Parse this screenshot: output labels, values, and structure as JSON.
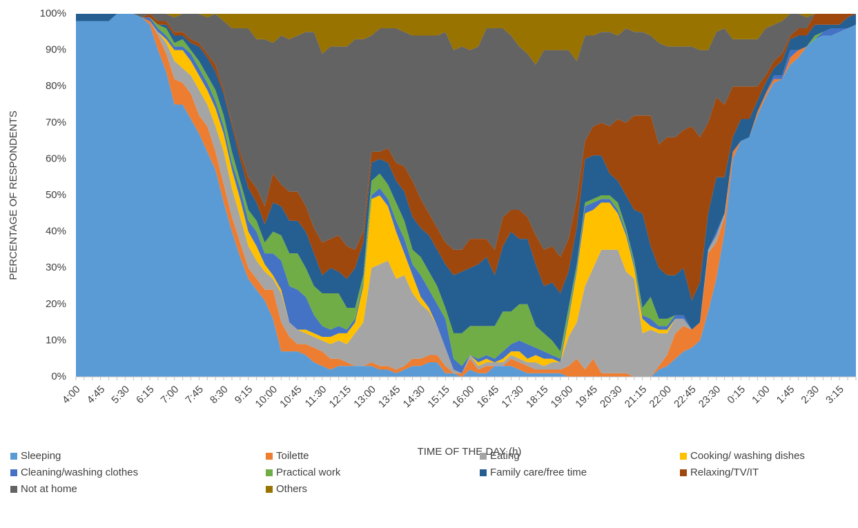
{
  "chart_data": {
    "type": "stacked_area",
    "x_label": "TIME OF THE DAY (h)",
    "y_label": "PERCENTAGE OF RESPONDENTS",
    "categories": [
      "4:00",
      null,
      null,
      "4:45",
      null,
      null,
      "5:30",
      null,
      null,
      "6:15",
      null,
      null,
      "7:00",
      null,
      null,
      "7:45",
      null,
      null,
      "8:30",
      null,
      null,
      "9:15",
      null,
      null,
      "10:00",
      null,
      null,
      "10:45",
      null,
      null,
      "11:30",
      null,
      null,
      "12:15",
      null,
      null,
      "13:00",
      null,
      null,
      "13:45",
      null,
      null,
      "14:30",
      null,
      null,
      "15:15",
      null,
      null,
      "16:00",
      null,
      null,
      "16:45",
      null,
      null,
      "17:30",
      null,
      null,
      "18:15",
      null,
      null,
      "19:00",
      null,
      null,
      "19:45",
      null,
      null,
      "20:30",
      null,
      null,
      "21:15",
      null,
      null,
      "22:00",
      null,
      null,
      "22:45",
      null,
      null,
      "23:30",
      null,
      null,
      "0:15",
      null,
      null,
      "1:00",
      null,
      null,
      "1:45",
      null,
      null,
      "2:30",
      null,
      null,
      "3:15",
      null,
      null
    ],
    "ylim": [
      0,
      100
    ],
    "yticks": [
      {
        "value": 0,
        "label": "0%"
      },
      {
        "value": 10,
        "label": "10%"
      },
      {
        "value": 20,
        "label": "20%"
      },
      {
        "value": 30,
        "label": "30%"
      },
      {
        "value": 40,
        "label": "40%"
      },
      {
        "value": 50,
        "label": "50%"
      },
      {
        "value": 60,
        "label": "60%"
      },
      {
        "value": 70,
        "label": "70%"
      },
      {
        "value": 80,
        "label": "80%"
      },
      {
        "value": 90,
        "label": "90%"
      },
      {
        "value": 100,
        "label": "100%"
      }
    ],
    "grid": false,
    "legend_position": "bottom",
    "series": [
      {
        "name": "Sleeping",
        "color": "#5b9bd5",
        "values": [
          98,
          98,
          98,
          98,
          98,
          100,
          100,
          100,
          99,
          97,
          90,
          84,
          75,
          75,
          71,
          67,
          62,
          57,
          48,
          40,
          33,
          27,
          24,
          21,
          16,
          7,
          7,
          7,
          6,
          4,
          3,
          2,
          3,
          3,
          3,
          3,
          3,
          2,
          2,
          1,
          2,
          3,
          3,
          4,
          4,
          1,
          1,
          0,
          2,
          1,
          1,
          3,
          3,
          3,
          2,
          1,
          1,
          1,
          1,
          1,
          0,
          0,
          0,
          0,
          0,
          0,
          0,
          0,
          0,
          0,
          0,
          2,
          3,
          5,
          7,
          8,
          10,
          18,
          27,
          40,
          60,
          65,
          66,
          72,
          77,
          81,
          82,
          86,
          88,
          91,
          93,
          94,
          94,
          95,
          96,
          97
        ]
      },
      {
        "name": "Toilette",
        "color": "#ed7d31",
        "values": [
          0,
          0,
          0,
          0,
          0,
          0,
          0,
          0,
          0,
          1,
          4,
          5,
          7,
          6,
          7,
          5,
          7,
          5,
          5,
          4,
          4,
          3,
          3,
          3,
          8,
          8,
          4,
          2,
          3,
          4,
          4,
          3,
          2,
          1,
          0,
          0,
          1,
          1,
          1,
          1,
          1,
          2,
          2,
          2,
          2,
          2,
          0,
          1,
          3,
          1,
          2,
          0,
          0,
          2,
          2,
          2,
          1,
          1,
          1,
          1,
          3,
          5,
          2,
          5,
          1,
          1,
          1,
          1,
          0,
          0,
          0,
          1,
          3,
          7,
          7,
          5,
          5,
          16,
          10,
          4,
          2,
          0,
          0,
          1,
          1,
          1,
          0,
          2,
          2,
          0,
          0,
          0,
          0,
          0,
          0,
          0
        ]
      },
      {
        "name": "Eating",
        "color": "#a5a5a5",
        "values": [
          0,
          0,
          0,
          0,
          0,
          0,
          0,
          0,
          0,
          0,
          1,
          3,
          5,
          4,
          5,
          7,
          6,
          7,
          9,
          8,
          7,
          6,
          5,
          5,
          3,
          8,
          4,
          4,
          3,
          3,
          3,
          4,
          5,
          5,
          9,
          12,
          26,
          28,
          29,
          25,
          25,
          18,
          15,
          12,
          8,
          5,
          1,
          0,
          1,
          1,
          1,
          1,
          1,
          1,
          1,
          1,
          2,
          1,
          2,
          2,
          8,
          10,
          23,
          25,
          34,
          34,
          34,
          28,
          27,
          12,
          13,
          9,
          6,
          4,
          2,
          0,
          0,
          1,
          2,
          1,
          0,
          0,
          0,
          0,
          0,
          0,
          0,
          0,
          0,
          0,
          0,
          0,
          0,
          0,
          0,
          0
        ]
      },
      {
        "name": "Cooking/ washing dishes",
        "color": "#ffc000",
        "values": [
          0,
          0,
          0,
          0,
          0,
          0,
          0,
          0,
          0,
          0,
          0,
          1,
          3,
          5,
          4,
          4,
          4,
          5,
          5,
          5,
          5,
          4,
          4,
          2,
          1,
          1,
          0,
          0,
          1,
          1,
          1,
          2,
          2,
          3,
          3,
          10,
          19,
          19,
          15,
          13,
          6,
          5,
          2,
          1,
          0,
          0,
          0,
          0,
          0,
          1,
          1,
          0,
          1,
          1,
          2,
          1,
          2,
          2,
          1,
          0,
          5,
          14,
          20,
          16,
          13,
          13,
          10,
          10,
          3,
          4,
          1,
          1,
          1,
          0,
          0,
          0,
          0,
          0,
          0,
          0,
          0,
          0,
          0,
          0,
          0,
          0,
          0,
          0,
          0,
          0,
          0,
          0,
          0,
          0,
          0,
          0
        ]
      },
      {
        "name": "Cleaning/washing clothes",
        "color": "#4472c4",
        "values": [
          0,
          0,
          0,
          0,
          0,
          0,
          0,
          0,
          0,
          1,
          1,
          1,
          1,
          1,
          2,
          2,
          2,
          2,
          2,
          2,
          3,
          3,
          4,
          3,
          6,
          8,
          10,
          11,
          9,
          5,
          3,
          2,
          2,
          1,
          1,
          1,
          1,
          2,
          2,
          3,
          4,
          3,
          6,
          5,
          6,
          8,
          3,
          2,
          0,
          1,
          1,
          1,
          2,
          2,
          3,
          4,
          2,
          2,
          1,
          1,
          1,
          1,
          2,
          2,
          1,
          1,
          1,
          1,
          1,
          1,
          2,
          1,
          1,
          1,
          1,
          0,
          0,
          0,
          1,
          0,
          0,
          0,
          0,
          0,
          0,
          1,
          1,
          2,
          0,
          0,
          0,
          1,
          2,
          1,
          0,
          0
        ]
      },
      {
        "name": "Practical work",
        "color": "#70ad47",
        "values": [
          0,
          0,
          0,
          0,
          0,
          0,
          0,
          0,
          0,
          0,
          1,
          2,
          1,
          2,
          1,
          2,
          2,
          3,
          3,
          3,
          2,
          3,
          3,
          3,
          6,
          7,
          9,
          10,
          8,
          8,
          9,
          10,
          9,
          6,
          3,
          2,
          4,
          4,
          4,
          5,
          5,
          4,
          5,
          5,
          5,
          3,
          7,
          9,
          8,
          9,
          8,
          9,
          11,
          9,
          10,
          11,
          6,
          5,
          4,
          2,
          2,
          1,
          1,
          1,
          1,
          1,
          2,
          1,
          1,
          2,
          6,
          2,
          2,
          0,
          0,
          0,
          0,
          0,
          0,
          0,
          0,
          0,
          0,
          0,
          0,
          0,
          0,
          0,
          0,
          0,
          1,
          0,
          0,
          0,
          0,
          0
        ]
      },
      {
        "name": "Family care/free time",
        "color": "#255e91",
        "values": [
          2,
          2,
          2,
          2,
          2,
          0,
          0,
          0,
          0,
          0,
          0,
          1,
          2,
          1,
          2,
          4,
          5,
          5,
          6,
          7,
          6,
          6,
          5,
          5,
          8,
          8,
          9,
          9,
          10,
          9,
          5,
          7,
          6,
          8,
          11,
          9,
          5,
          4,
          6,
          6,
          8,
          9,
          8,
          10,
          10,
          12,
          16,
          17,
          16,
          17,
          19,
          14,
          18,
          22,
          18,
          18,
          17,
          13,
          16,
          16,
          10,
          10,
          12,
          12,
          11,
          6,
          6,
          9,
          14,
          26,
          14,
          14,
          12,
          11,
          13,
          8,
          11,
          10,
          15,
          10,
          4,
          6,
          5,
          3,
          3,
          2,
          4,
          3,
          4,
          3,
          3,
          2,
          1,
          1,
          3,
          3
        ]
      },
      {
        "name": "Relaxing/TV/IT",
        "color": "#9e480e",
        "values": [
          0,
          0,
          0,
          0,
          0,
          0,
          0,
          0,
          0,
          1,
          1,
          1,
          1,
          1,
          1,
          1,
          1,
          2,
          1,
          1,
          2,
          3,
          4,
          5,
          8,
          6,
          8,
          8,
          7,
          7,
          9,
          8,
          10,
          9,
          5,
          3,
          3,
          2,
          4,
          5,
          7,
          10,
          8,
          6,
          6,
          6,
          7,
          6,
          8,
          7,
          5,
          7,
          8,
          6,
          8,
          6,
          8,
          10,
          10,
          10,
          9,
          8,
          5,
          8,
          9,
          13,
          17,
          20,
          26,
          27,
          36,
          34,
          38,
          38,
          38,
          48,
          40,
          25,
          22,
          20,
          14,
          9,
          9,
          4,
          2,
          2,
          2,
          1,
          2,
          2,
          3,
          3,
          3,
          3,
          1,
          0
        ]
      },
      {
        "name": "Not at home",
        "color": "#636363",
        "values": [
          0,
          0,
          0,
          0,
          0,
          0,
          0,
          0,
          1,
          0,
          2,
          2,
          4,
          5,
          7,
          8,
          10,
          14,
          19,
          26,
          34,
          41,
          41,
          46,
          36,
          41,
          42,
          43,
          48,
          54,
          52,
          53,
          52,
          55,
          58,
          53,
          32,
          34,
          33,
          37,
          37,
          40,
          45,
          49,
          53,
          58,
          55,
          56,
          52,
          53,
          58,
          61,
          52,
          48,
          45,
          45,
          47,
          55,
          54,
          57,
          52,
          38,
          29,
          25,
          25,
          26,
          23,
          26,
          23,
          23,
          22,
          28,
          25,
          25,
          23,
          22,
          24,
          20,
          18,
          21,
          13,
          13,
          13,
          13,
          13,
          10,
          9,
          6,
          4,
          3,
          0,
          0,
          0,
          0,
          0,
          0
        ]
      },
      {
        "name": "Others",
        "color": "#997300",
        "values": [
          0,
          0,
          0,
          0,
          0,
          0,
          0,
          0,
          0,
          0,
          0,
          0,
          1,
          0,
          0,
          0,
          1,
          0,
          2,
          4,
          4,
          4,
          7,
          7,
          8,
          6,
          7,
          6,
          5,
          5,
          11,
          9,
          9,
          9,
          7,
          7,
          6,
          4,
          4,
          4,
          5,
          6,
          6,
          6,
          6,
          5,
          10,
          9,
          10,
          9,
          4,
          4,
          4,
          6,
          9,
          11,
          14,
          10,
          10,
          10,
          10,
          13,
          6,
          6,
          5,
          5,
          6,
          4,
          5,
          5,
          6,
          8,
          9,
          9,
          9,
          9,
          10,
          10,
          5,
          4,
          7,
          7,
          7,
          7,
          4,
          3,
          2,
          0,
          0,
          1,
          0,
          0,
          0,
          0,
          0,
          0
        ]
      }
    ]
  }
}
